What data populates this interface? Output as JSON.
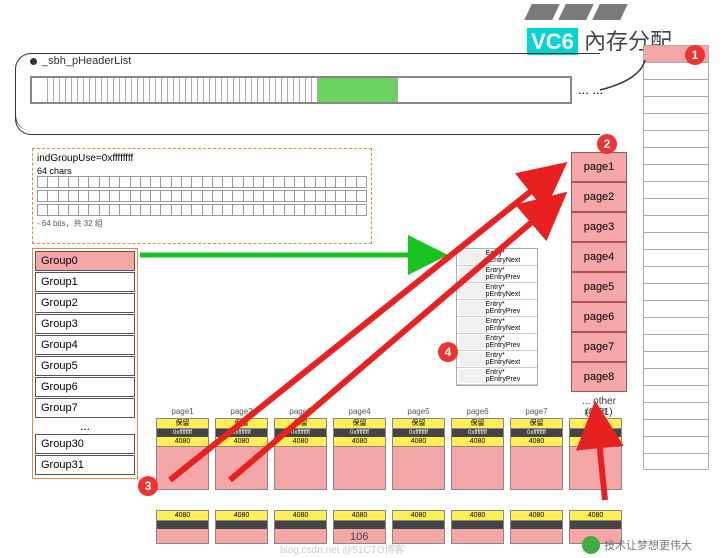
{
  "title": {
    "vc6": "VC6",
    "mem": "內存分配"
  },
  "header_label": "_sbh_pHeaderList",
  "bar_ellipsis": "... ...",
  "indgroup": {
    "title": "indGroupUse=0xffffffff",
    "chars_label": "64 chars",
    "note": "- 64 bits，共 32 组"
  },
  "groups": [
    "Group0",
    "Group1",
    "Group2",
    "Group3",
    "Group4",
    "Group5",
    "Group6",
    "Group7",
    "...",
    "Group30",
    "Group31"
  ],
  "group_selected": 0,
  "pages": [
    "page1",
    "page2",
    "page3",
    "page4",
    "page5",
    "page6",
    "page7",
    "page8"
  ],
  "pages_note": "... other (8*31) pages",
  "segments": [
    {
      "label": "page1",
      "yel": "保留",
      "dk": "0xffffffff",
      "val": "4080"
    },
    {
      "label": "page2",
      "yel": "保留",
      "dk": "0xffffffff",
      "val": "4080"
    },
    {
      "label": "page3",
      "yel": "保留",
      "dk": "0xffffffff",
      "val": "4080"
    },
    {
      "label": "page4",
      "yel": "保留",
      "dk": "0xffffffff",
      "val": "4080"
    },
    {
      "label": "page5",
      "yel": "保留",
      "dk": "0xffffffff",
      "val": "4080"
    },
    {
      "label": "page6",
      "yel": "保留",
      "dk": "0xffffffff",
      "val": "4080"
    },
    {
      "label": "page7",
      "yel": "保留",
      "dk": "0xffffffff",
      "val": "4080"
    },
    {
      "label": "page8",
      "yel": "保留",
      "dk": "0xffffffff",
      "val": "4080"
    }
  ],
  "smallgrp_rows": [
    "Entry* pEntryNext",
    "Entry* pEntryPrev",
    "Entry* pEntryNext",
    "Entry* pEntryPrev",
    "Entry* pEntryNext",
    "Entry* pEntryPrev",
    "Entry* pEntryNext",
    "Entry* pEntryPrev"
  ],
  "badges": {
    "b1": "1",
    "b2": "2",
    "b3": "3",
    "b4": "4"
  },
  "pagenum": "106",
  "watermark": "技术让梦想更伟大",
  "wmfaint": "blog.csdn.net    @51CTO博客",
  "colors": {
    "pink": "#f5a6a6",
    "green": "#6bd15f",
    "accent": "#00d4d4",
    "red": "#e82020",
    "arrow_green": "#17c41e",
    "orange": "#e58a3a",
    "yellow": "#ffee55",
    "dark": "#444444",
    "gray": "#7a7a7a"
  }
}
